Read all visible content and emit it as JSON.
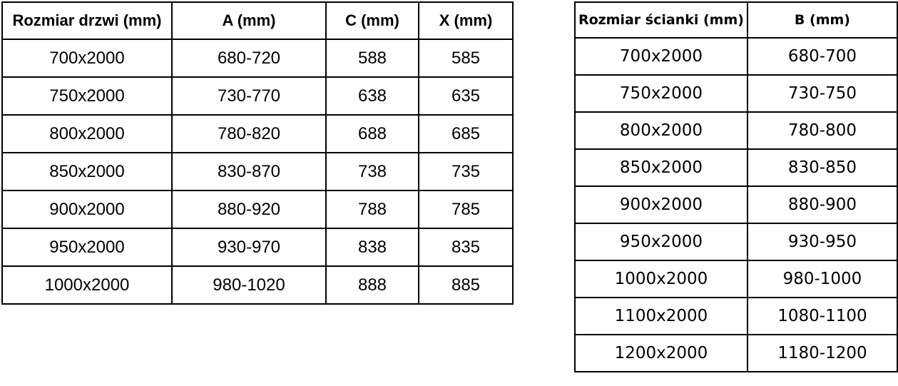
{
  "door_table": {
    "headers": [
      "Rozmiar drzwi (mm)",
      "A (mm)",
      "C (mm)",
      "X (mm)"
    ],
    "rows": [
      [
        "700x2000",
        "680-720",
        "588",
        "585"
      ],
      [
        "750x2000",
        "730-770",
        "638",
        "635"
      ],
      [
        "800x2000",
        "780-820",
        "688",
        "685"
      ],
      [
        "850x2000",
        "830-870",
        "738",
        "735"
      ],
      [
        "900x2000",
        "880-920",
        "788",
        "785"
      ],
      [
        "950x2000",
        "930-970",
        "838",
        "835"
      ],
      [
        "1000x2000",
        "980-1020",
        "888",
        "885"
      ]
    ]
  },
  "wall_table": {
    "headers": [
      "Rozmiar ścianki (mm)",
      "B (mm)"
    ],
    "rows": [
      [
        "700x2000",
        "680-700"
      ],
      [
        "750x2000",
        "730-750"
      ],
      [
        "800x2000",
        "780-800"
      ],
      [
        "850x2000",
        "830-850"
      ],
      [
        "900x2000",
        "880-900"
      ],
      [
        "950x2000",
        "930-950"
      ],
      [
        "1000x2000",
        "980-1000"
      ],
      [
        "1100x2000",
        "1080-1100"
      ],
      [
        "1200x2000",
        "1180-1200"
      ]
    ]
  },
  "colors": {
    "background": "#ffffff",
    "text": "#000000",
    "border": "#000000"
  }
}
